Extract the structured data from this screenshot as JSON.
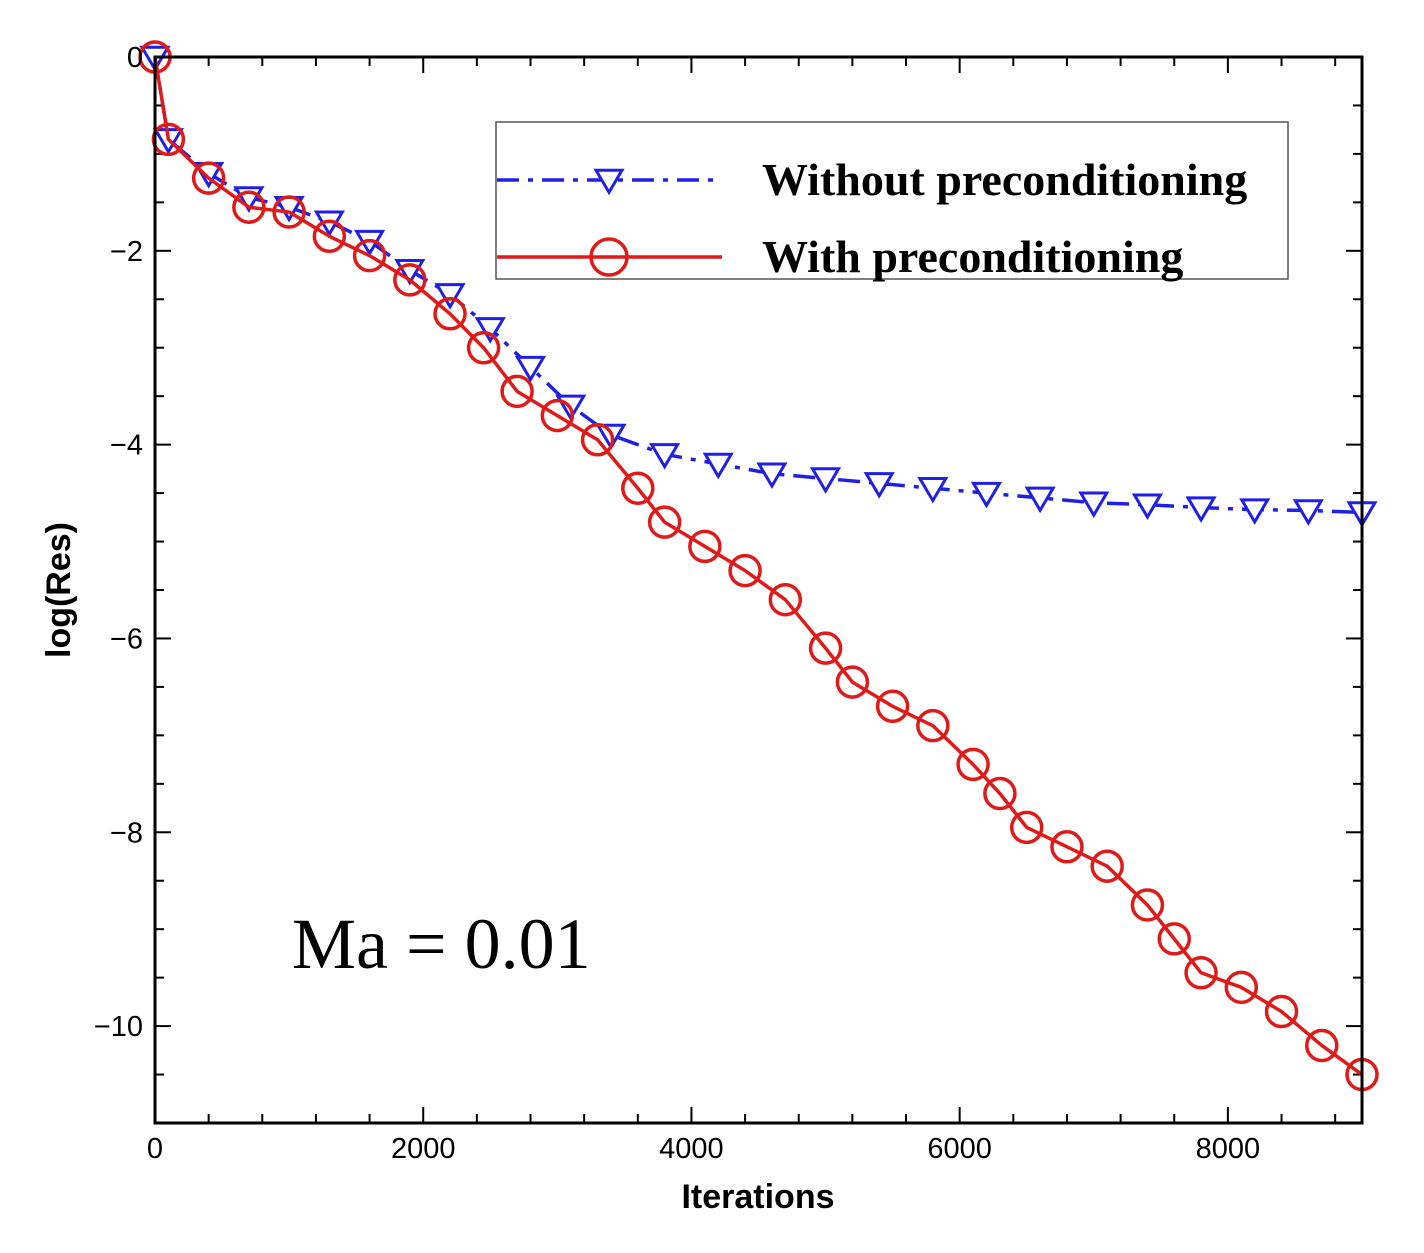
{
  "chart_data": {
    "type": "line",
    "title": "",
    "xlabel": "Iterations",
    "ylabel": "log(Res)",
    "xlim": [
      0,
      9000
    ],
    "ylim": [
      -11,
      0
    ],
    "x_ticks": [
      0,
      2000,
      4000,
      6000,
      8000
    ],
    "y_ticks": [
      0,
      -2,
      -4,
      -6,
      -8,
      -10
    ],
    "x_tick_labels": [
      "0",
      "2000",
      "4000",
      "6000",
      "8000"
    ],
    "y_tick_labels": [
      "0",
      "−2",
      "−4",
      "−6",
      "−8",
      "−10"
    ],
    "annotation": "Ma = 0.01",
    "legend_position": "top-right",
    "series": [
      {
        "name": "Without preconditioning",
        "color": "#1f1fe6",
        "line_style": "dash-dot",
        "marker": "down-triangle",
        "x": [
          0,
          100,
          400,
          700,
          1000,
          1300,
          1600,
          1900,
          2200,
          2500,
          2800,
          3100,
          3400,
          3800,
          4200,
          4600,
          5000,
          5400,
          5800,
          6200,
          6600,
          7000,
          7400,
          7800,
          8200,
          8600,
          9000
        ],
        "y": [
          0,
          -0.85,
          -1.2,
          -1.45,
          -1.55,
          -1.7,
          -1.9,
          -2.2,
          -2.45,
          -2.8,
          -3.2,
          -3.6,
          -3.9,
          -4.1,
          -4.2,
          -4.3,
          -4.35,
          -4.4,
          -4.45,
          -4.5,
          -4.55,
          -4.6,
          -4.62,
          -4.65,
          -4.67,
          -4.68,
          -4.7
        ]
      },
      {
        "name": "With preconditioning",
        "color": "#e01919",
        "line_style": "solid",
        "marker": "circle",
        "x": [
          0,
          100,
          400,
          700,
          1000,
          1300,
          1600,
          1900,
          2200,
          2450,
          2700,
          3000,
          3300,
          3600,
          3800,
          4100,
          4400,
          4700,
          5000,
          5200,
          5500,
          5800,
          6100,
          6300,
          6500,
          6800,
          7100,
          7400,
          7600,
          7800,
          8100,
          8400,
          8700,
          9000
        ],
        "y": [
          0,
          -0.85,
          -1.25,
          -1.55,
          -1.6,
          -1.85,
          -2.05,
          -2.3,
          -2.65,
          -3.0,
          -3.45,
          -3.7,
          -3.95,
          -4.45,
          -4.8,
          -5.05,
          -5.3,
          -5.6,
          -6.1,
          -6.45,
          -6.7,
          -6.9,
          -7.3,
          -7.6,
          -7.95,
          -8.15,
          -8.35,
          -8.75,
          -9.1,
          -9.45,
          -9.6,
          -9.85,
          -10.2,
          -10.5
        ]
      }
    ]
  }
}
